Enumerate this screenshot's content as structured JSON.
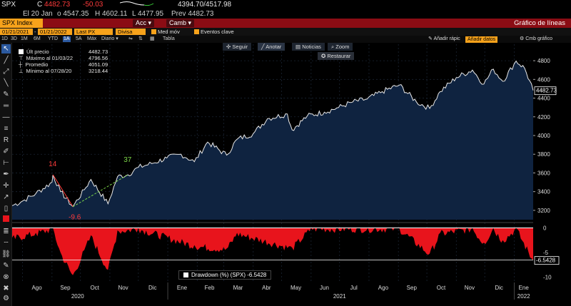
{
  "ticker": {
    "symbol": "SPX",
    "currency_flag": "C",
    "last": "4482.73",
    "change": "-50.03",
    "bid_ask": "4394.70/4517.98"
  },
  "info": {
    "exchange_date": "El 20 Jan",
    "open": "o 4547.35",
    "high": "H 4602.11",
    "low": "L 4477.95",
    "prev": "Prev 4482.73"
  },
  "command_bar": {
    "security": "SPX Index",
    "actions_menu": "Acc",
    "change_menu": "Camb",
    "title": "Gráfico de líneas"
  },
  "date_bar": {
    "start_date": "01/21/2021",
    "end_date": "01/21/2022",
    "field": "Last PX",
    "currency": "Divisa local",
    "moving_avg": "Med móv",
    "key_events": "Eventos clave"
  },
  "periods": [
    "1D",
    "3D",
    "1M",
    "6M",
    "YTD",
    "1A",
    "5A",
    "Máx",
    "Diario"
  ],
  "selected_period": "1A",
  "table_label": "Tabla",
  "add_quick_label": "Añadir rápic",
  "add_data_label": "Añadir datos",
  "chart_settings_label": "Cmb gráfico",
  "toolbar_buttons": {
    "follow": "Seguir",
    "annotate": "Anotar",
    "news": "Noticias",
    "zoom": "Zoom",
    "restore": "Restaurar"
  },
  "legend": [
    {
      "label": "Últ precio",
      "value": "4482.73"
    },
    {
      "label": "Máximo al 01/03/22",
      "value": "4796.56"
    },
    {
      "label": "Promedio",
      "value": "4051.09"
    },
    {
      "label": "Mínimo al 07/28/20",
      "value": "3218.44"
    }
  ],
  "annotations": {
    "peak_label": "14",
    "trough_label": "-9.6",
    "recovery_label": "37"
  },
  "price_axis_ticks": [
    "4800",
    "4600",
    "4400",
    "4200",
    "4000",
    "3800",
    "3600",
    "3400",
    "3200"
  ],
  "last_price_tag": "4482.73",
  "drawdown_axis_ticks": [
    "0",
    "-5",
    "-10"
  ],
  "drawdown_tag": "-6.5428",
  "drawdown_legend": "Drawdown (%) (SPX) -6.5428",
  "x_axis": {
    "months": [
      "Ago",
      "Sep",
      "Oct",
      "Nov",
      "Dic",
      "Ene",
      "Feb",
      "Mar",
      "Abr",
      "May",
      "Jun",
      "Jul",
      "Ago",
      "Sep",
      "Oct",
      "Nov",
      "Dic",
      "Ene"
    ],
    "years": [
      "2020",
      "2021",
      "2022"
    ]
  },
  "colors": {
    "accent": "#f7a21b",
    "command_bar": "#8b0c14",
    "area_fill": "#0f2340",
    "price_line": "#e8e8e8",
    "drawdown": "#e8141c",
    "peak_label": "#ff3b3b",
    "recovery_label": "#7dd84a"
  },
  "chart_data": [
    {
      "type": "area",
      "title": "SPX Index - Last PX",
      "ylim": [
        3100,
        4900
      ],
      "x": [
        "2020-07-21",
        "2020-08-01",
        "2020-08-15",
        "2020-09-01",
        "2020-09-02",
        "2020-09-10",
        "2020-09-23",
        "2020-10-05",
        "2020-10-12",
        "2020-10-30",
        "2020-11-09",
        "2020-11-20",
        "2020-12-01",
        "2020-12-15",
        "2020-12-31",
        "2021-01-15",
        "2021-01-29",
        "2021-02-12",
        "2021-03-04",
        "2021-03-15",
        "2021-04-01",
        "2021-04-16",
        "2021-05-07",
        "2021-05-12",
        "2021-05-28",
        "2021-06-15",
        "2021-06-30",
        "2021-07-15",
        "2021-07-30",
        "2021-08-15",
        "2021-09-02",
        "2021-09-20",
        "2021-10-04",
        "2021-10-15",
        "2021-11-01",
        "2021-11-18",
        "2021-11-30",
        "2021-12-10",
        "2021-12-20",
        "2022-01-03",
        "2022-01-12",
        "2022-01-21"
      ],
      "series": [
        {
          "name": "Últ precio",
          "values": [
            3250,
            3300,
            3380,
            3500,
            3580,
            3400,
            3240,
            3420,
            3530,
            3270,
            3560,
            3580,
            3660,
            3700,
            3760,
            3800,
            3720,
            3930,
            3790,
            3960,
            4020,
            4180,
            4230,
            4060,
            4210,
            4250,
            4300,
            4360,
            4390,
            4470,
            4540,
            4360,
            4290,
            4470,
            4620,
            4700,
            4550,
            4710,
            4580,
            4796,
            4720,
            4482
          ]
        }
      ]
    },
    {
      "type": "area",
      "title": "Drawdown (%) (SPX)",
      "ylim": [
        -10.5,
        0.5
      ],
      "x": [
        "2020-07-21",
        "2020-08-15",
        "2020-09-02",
        "2020-09-10",
        "2020-09-23",
        "2020-10-05",
        "2020-10-12",
        "2020-10-30",
        "2020-11-09",
        "2020-12-01",
        "2021-01-29",
        "2021-03-04",
        "2021-03-15",
        "2021-05-12",
        "2021-06-01",
        "2021-09-02",
        "2021-10-04",
        "2021-10-15",
        "2021-11-18",
        "2021-11-30",
        "2021-12-10",
        "2021-12-20",
        "2022-01-03",
        "2022-01-21"
      ],
      "series": [
        {
          "name": "Drawdown (%) (SPX)",
          "values": [
            -2.0,
            -1.0,
            0,
            -5.0,
            -9.6,
            -4.5,
            -1.5,
            -8.5,
            -0.5,
            0,
            -3.5,
            -4.2,
            -1.0,
            -4.0,
            0,
            0,
            -5.2,
            -1.0,
            0,
            -3.0,
            0,
            -2.5,
            0,
            -6.5428
          ]
        }
      ]
    }
  ]
}
